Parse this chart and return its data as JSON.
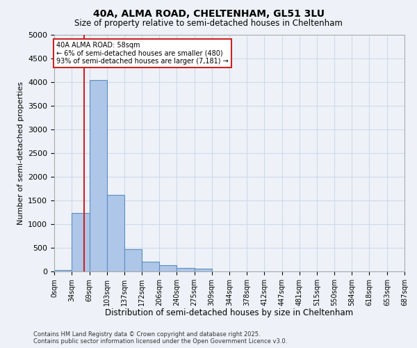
{
  "title_line1": "40A, ALMA ROAD, CHELTENHAM, GL51 3LU",
  "title_line2": "Size of property relative to semi-detached houses in Cheltenham",
  "xlabel": "Distribution of semi-detached houses by size in Cheltenham",
  "ylabel": "Number of semi-detached properties",
  "footer_line1": "Contains HM Land Registry data © Crown copyright and database right 2025.",
  "footer_line2": "Contains public sector information licensed under the Open Government Licence v3.0.",
  "annotation_title": "40A ALMA ROAD: 58sqm",
  "annotation_line1": "← 6% of semi-detached houses are smaller (480)",
  "annotation_line2": "93% of semi-detached houses are larger (7,181) →",
  "subject_size": 58,
  "bin_edges": [
    0,
    34,
    69,
    103,
    137,
    172,
    206,
    240,
    275,
    309,
    344,
    378,
    412,
    447,
    481,
    515,
    550,
    584,
    618,
    653,
    687
  ],
  "bar_heights": [
    30,
    1230,
    4050,
    1620,
    470,
    200,
    130,
    75,
    55,
    0,
    0,
    0,
    0,
    0,
    0,
    0,
    0,
    0,
    0,
    0
  ],
  "bar_color": "#aec6e8",
  "bar_edge_color": "#5a8fc2",
  "grid_color": "#d0d8e8",
  "background_color": "#eef2f8",
  "axes_background_color": "#eef2f8",
  "red_line_color": "#cc2222",
  "annotation_box_color": "#cc2222",
  "ylim": [
    0,
    5000
  ],
  "yticks": [
    0,
    500,
    1000,
    1500,
    2000,
    2500,
    3000,
    3500,
    4000,
    4500,
    5000
  ]
}
